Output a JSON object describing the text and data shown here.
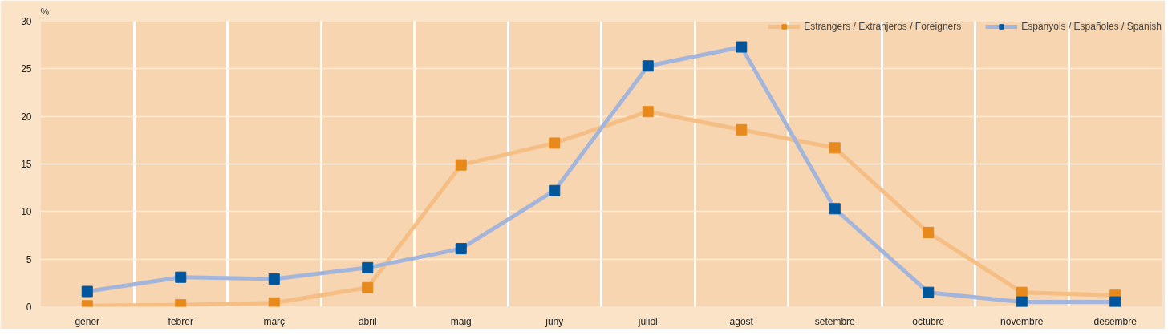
{
  "chart_data": {
    "type": "line",
    "ylabel": "%",
    "categories": [
      "gener",
      "febrer",
      "març",
      "abril",
      "maig",
      "juny",
      "juliol",
      "agost",
      "setembre",
      "octubre",
      "novembre",
      "desembre"
    ],
    "series": [
      {
        "name": "Estrangers / Extranjeros / Foreigners",
        "color": "#e8891c",
        "values": [
          0.1,
          0.2,
          0.4,
          2.0,
          14.9,
          17.2,
          20.5,
          18.6,
          16.7,
          7.8,
          1.5,
          1.2
        ]
      },
      {
        "name": "Espanyols / Españoles / Spanish",
        "color": "#00569c",
        "values": [
          1.6,
          3.1,
          2.9,
          4.1,
          6.1,
          12.2,
          25.3,
          27.3,
          10.3,
          1.5,
          0.5,
          0.5
        ]
      }
    ],
    "ylim": [
      0,
      30
    ],
    "yticks": [
      0,
      5,
      10,
      15,
      20,
      25,
      30
    ],
    "grid": true,
    "legend": "top right",
    "marker": "square",
    "line_style": "solid"
  }
}
